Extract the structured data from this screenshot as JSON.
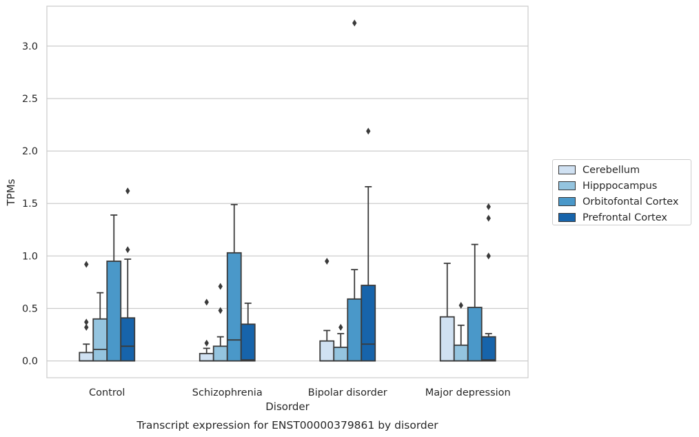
{
  "chart_data": {
    "type": "box",
    "title": "Transcript expression for ENST00000379861 by disorder",
    "xlabel": "Disorder",
    "ylabel": "TPMs",
    "ylim": [
      -0.16,
      3.38
    ],
    "yticks": [
      0.0,
      0.5,
      1.0,
      1.5,
      2.0,
      2.5,
      3.0
    ],
    "ytick_labels": [
      "0.0",
      "0.5",
      "1.0",
      "1.5",
      "2.0",
      "2.5",
      "3.0"
    ],
    "grid": "horizontal",
    "legend_position": "right",
    "categories": [
      "Control",
      "Schizophrenia",
      "Bipolar disorder",
      "Major depression"
    ],
    "series": [
      {
        "name": "Cerebellum",
        "color": "#d0e1f2",
        "boxes": [
          {
            "min": 0.0,
            "q1": 0.0,
            "median": 0.0,
            "q3": 0.08,
            "max": 0.16,
            "outliers": [
              0.32,
              0.37,
              0.92
            ]
          },
          {
            "min": 0.0,
            "q1": 0.0,
            "median": 0.0,
            "q3": 0.07,
            "max": 0.12,
            "outliers": [
              0.17,
              0.56
            ]
          },
          {
            "min": 0.0,
            "q1": 0.0,
            "median": 0.0,
            "q3": 0.19,
            "max": 0.29,
            "outliers": [
              0.95
            ]
          },
          {
            "min": 0.0,
            "q1": 0.0,
            "median": 0.0,
            "q3": 0.42,
            "max": 0.93,
            "outliers": []
          }
        ]
      },
      {
        "name": "Hipppocampus",
        "color": "#94c4df",
        "boxes": [
          {
            "min": 0.0,
            "q1": 0.0,
            "median": 0.11,
            "q3": 0.4,
            "max": 0.65,
            "outliers": []
          },
          {
            "min": 0.0,
            "q1": 0.0,
            "median": 0.0,
            "q3": 0.14,
            "max": 0.23,
            "outliers": [
              0.48,
              0.71
            ]
          },
          {
            "min": 0.0,
            "q1": 0.0,
            "median": 0.0,
            "q3": 0.13,
            "max": 0.26,
            "outliers": [
              0.32
            ]
          },
          {
            "min": 0.0,
            "q1": 0.0,
            "median": 0.0,
            "q3": 0.15,
            "max": 0.34,
            "outliers": [
              0.53
            ]
          }
        ]
      },
      {
        "name": "Orbitofontal Cortex",
        "color": "#4a98c9",
        "boxes": [
          {
            "min": 0.0,
            "q1": 0.0,
            "median": 0.0,
            "q3": 0.95,
            "max": 1.39,
            "outliers": []
          },
          {
            "min": 0.0,
            "q1": 0.0,
            "median": 0.2,
            "q3": 1.03,
            "max": 1.49,
            "outliers": []
          },
          {
            "min": 0.0,
            "q1": 0.0,
            "median": 0.0,
            "q3": 0.59,
            "max": 0.87,
            "outliers": [
              3.22
            ]
          },
          {
            "min": 0.0,
            "q1": 0.0,
            "median": 0.0,
            "q3": 0.51,
            "max": 1.11,
            "outliers": []
          }
        ]
      },
      {
        "name": "Prefrontal Cortex",
        "color": "#1764ab",
        "boxes": [
          {
            "min": 0.0,
            "q1": 0.0,
            "median": 0.14,
            "q3": 0.41,
            "max": 0.97,
            "outliers": [
              1.06,
              1.62
            ]
          },
          {
            "min": 0.0,
            "q1": 0.0,
            "median": 0.01,
            "q3": 0.35,
            "max": 0.55,
            "outliers": []
          },
          {
            "min": 0.0,
            "q1": 0.0,
            "median": 0.16,
            "q3": 0.72,
            "max": 1.66,
            "outliers": [
              2.19
            ]
          },
          {
            "min": 0.0,
            "q1": 0.0,
            "median": 0.01,
            "q3": 0.23,
            "max": 0.26,
            "outliers": [
              1.0,
              1.36,
              1.47
            ]
          }
        ]
      }
    ]
  }
}
